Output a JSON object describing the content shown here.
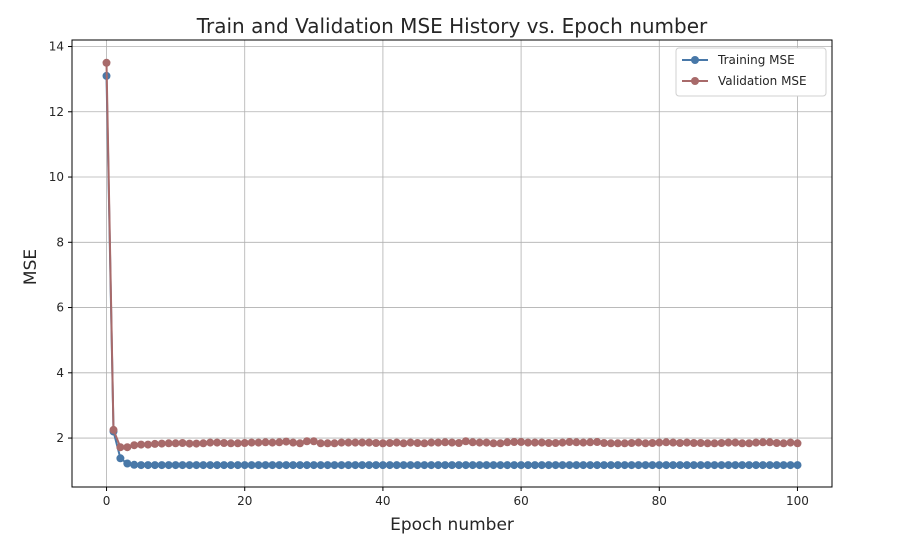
{
  "chart_data": {
    "type": "line",
    "title": "Train and Validation MSE History vs. Epoch number",
    "xlabel": "Epoch number",
    "ylabel": "MSE",
    "xlim": [
      -5,
      105
    ],
    "ylim": [
      0.5,
      14.2
    ],
    "xticks": [
      0,
      20,
      40,
      60,
      80,
      100
    ],
    "yticks": [
      2,
      4,
      6,
      8,
      10,
      12,
      14
    ],
    "grid": true,
    "legend_position": "top-right",
    "marker": "circle",
    "x": [
      0,
      1,
      2,
      3,
      4,
      5,
      6,
      7,
      8,
      9,
      10,
      11,
      12,
      13,
      14,
      15,
      16,
      17,
      18,
      19,
      20,
      21,
      22,
      23,
      24,
      25,
      26,
      27,
      28,
      29,
      30,
      31,
      32,
      33,
      34,
      35,
      36,
      37,
      38,
      39,
      40,
      41,
      42,
      43,
      44,
      45,
      46,
      47,
      48,
      49,
      50,
      51,
      52,
      53,
      54,
      55,
      56,
      57,
      58,
      59,
      60,
      61,
      62,
      63,
      64,
      65,
      66,
      67,
      68,
      69,
      70,
      71,
      72,
      73,
      74,
      75,
      76,
      77,
      78,
      79,
      80,
      81,
      82,
      83,
      84,
      85,
      86,
      87,
      88,
      89,
      90,
      91,
      92,
      93,
      94,
      95,
      96,
      97,
      98,
      99,
      100
    ],
    "series": [
      {
        "name": "Training MSE",
        "color": "#4878a8",
        "values": [
          13.1,
          2.2,
          1.38,
          1.22,
          1.18,
          1.17,
          1.17,
          1.17,
          1.17,
          1.17,
          1.17,
          1.17,
          1.17,
          1.17,
          1.17,
          1.17,
          1.17,
          1.17,
          1.17,
          1.17,
          1.17,
          1.17,
          1.17,
          1.17,
          1.17,
          1.17,
          1.17,
          1.17,
          1.17,
          1.17,
          1.17,
          1.17,
          1.17,
          1.17,
          1.17,
          1.17,
          1.17,
          1.17,
          1.17,
          1.17,
          1.17,
          1.17,
          1.17,
          1.17,
          1.17,
          1.17,
          1.17,
          1.17,
          1.17,
          1.17,
          1.17,
          1.17,
          1.17,
          1.17,
          1.17,
          1.17,
          1.17,
          1.17,
          1.17,
          1.17,
          1.17,
          1.17,
          1.17,
          1.17,
          1.17,
          1.17,
          1.17,
          1.17,
          1.17,
          1.17,
          1.17,
          1.17,
          1.17,
          1.17,
          1.17,
          1.17,
          1.17,
          1.17,
          1.17,
          1.17,
          1.17,
          1.17,
          1.17,
          1.17,
          1.17,
          1.17,
          1.17,
          1.17,
          1.17,
          1.17,
          1.17,
          1.17,
          1.17,
          1.17,
          1.17,
          1.17,
          1.17,
          1.17,
          1.17,
          1.17,
          1.17
        ]
      },
      {
        "name": "Validation MSE",
        "color": "#a86a6a",
        "values": [
          13.5,
          2.25,
          1.72,
          1.72,
          1.78,
          1.8,
          1.8,
          1.82,
          1.83,
          1.84,
          1.84,
          1.85,
          1.83,
          1.83,
          1.84,
          1.86,
          1.86,
          1.85,
          1.84,
          1.84,
          1.85,
          1.86,
          1.86,
          1.87,
          1.86,
          1.87,
          1.89,
          1.86,
          1.84,
          1.9,
          1.9,
          1.84,
          1.84,
          1.84,
          1.86,
          1.86,
          1.86,
          1.86,
          1.86,
          1.85,
          1.84,
          1.85,
          1.86,
          1.84,
          1.86,
          1.85,
          1.84,
          1.86,
          1.86,
          1.87,
          1.86,
          1.85,
          1.9,
          1.87,
          1.86,
          1.86,
          1.84,
          1.84,
          1.87,
          1.88,
          1.88,
          1.86,
          1.86,
          1.86,
          1.85,
          1.85,
          1.86,
          1.88,
          1.87,
          1.86,
          1.87,
          1.88,
          1.85,
          1.84,
          1.84,
          1.84,
          1.85,
          1.86,
          1.84,
          1.85,
          1.86,
          1.87,
          1.86,
          1.85,
          1.86,
          1.85,
          1.85,
          1.84,
          1.84,
          1.85,
          1.86,
          1.86,
          1.84,
          1.84,
          1.86,
          1.87,
          1.87,
          1.85,
          1.84,
          1.86,
          1.84
        ]
      }
    ]
  }
}
